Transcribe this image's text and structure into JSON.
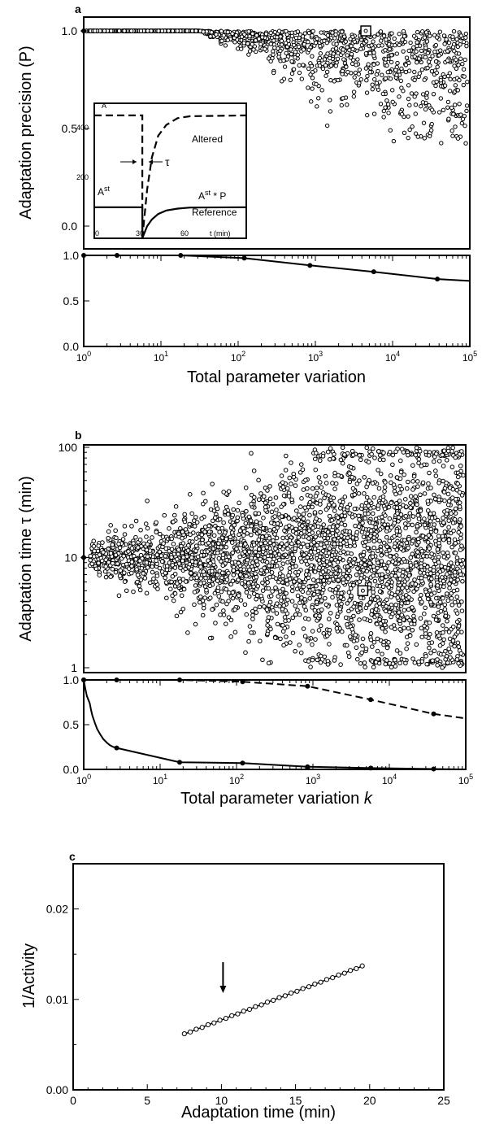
{
  "panels": {
    "a": {
      "letter": "a"
    },
    "b": {
      "letter": "b"
    },
    "c": {
      "letter": "c"
    }
  },
  "chart_data": [
    {
      "id": "a-top",
      "type": "scatter",
      "ylabel": "Adaptation precision (P)",
      "ylim": [
        0,
        1
      ],
      "yticks": [
        "0.0",
        "0.5",
        "1.0"
      ],
      "xscale": "log",
      "xlim": [
        1,
        100000
      ],
      "reference_point": {
        "x": 1,
        "y": 1.0
      },
      "highlight": {
        "x": 4500,
        "y": 1.0
      },
      "scatter_density": "points cluster at P=1.0 for small variation; spread down to ~0.45 for variation > 1000"
    },
    {
      "id": "a-inset",
      "type": "line",
      "ylabel": "A",
      "xlabel": "t (min)",
      "xticks": [
        "0",
        "30",
        "60"
      ],
      "yticks": [
        "200",
        "400"
      ],
      "xlim": [
        0,
        95
      ],
      "ylim": [
        0,
        500
      ],
      "series": [
        {
          "name": "Altered",
          "style": "dashed",
          "x": [
            0,
            30,
            30,
            33,
            36,
            40,
            45,
            52,
            60,
            95
          ],
          "y": [
            455,
            455,
            0,
            180,
            300,
            380,
            420,
            445,
            452,
            455
          ]
        },
        {
          "name": "Reference",
          "style": "solid",
          "x": [
            0,
            30,
            30,
            33,
            36,
            40,
            45,
            52,
            60,
            95
          ],
          "y": [
            115,
            115,
            0,
            45,
            70,
            90,
            103,
            110,
            114,
            115
          ]
        }
      ],
      "annotations": {
        "ast": "A",
        "ast_sup": "st",
        "astp": "A",
        "astp_sup": "st",
        "astp_tail": " * P",
        "tau": "τ"
      }
    },
    {
      "id": "a-bottom",
      "type": "line",
      "xlabel": "Total parameter variation",
      "xscale": "log",
      "xlim": [
        1,
        100000
      ],
      "ylim": [
        0,
        1
      ],
      "yticks": [
        "0.0",
        "0.5",
        "1.0"
      ],
      "xticks": [
        {
          "base": "10",
          "exp": "0"
        },
        {
          "base": "10",
          "exp": "1"
        },
        {
          "base": "10",
          "exp": "2"
        },
        {
          "base": "10",
          "exp": "3"
        },
        {
          "base": "10",
          "exp": "4"
        },
        {
          "base": "10",
          "exp": "5"
        }
      ],
      "series": [
        {
          "style": "solid",
          "x": [
            1,
            2.7,
            18,
            120,
            850,
            5700,
            38000,
            100000
          ],
          "y": [
            1.0,
            1.0,
            1.0,
            0.97,
            0.89,
            0.82,
            0.74,
            0.72
          ]
        }
      ]
    },
    {
      "id": "b-top",
      "type": "scatter",
      "ylabel": "Adaptation time τ (min)",
      "yscale": "log",
      "ylim": [
        1,
        100
      ],
      "yticks": [
        "1",
        "10",
        "100"
      ],
      "xscale": "log",
      "xlim": [
        1,
        100000
      ],
      "reference_point": {
        "x": 1,
        "y": 10
      },
      "highlight": {
        "x": 4500,
        "y": 5
      },
      "scatter_density": "dense cloud around τ=10 widening with variation; spans ~1 to 100 min"
    },
    {
      "id": "b-bottom",
      "type": "line",
      "xlabel": "Total parameter variation k",
      "xlabel_main": "Total parameter variation ",
      "xlabel_var": "k",
      "xscale": "log",
      "xlim": [
        1,
        100000
      ],
      "ylim": [
        0,
        1
      ],
      "yticks": [
        "0.0",
        "0.5",
        "1.0"
      ],
      "xticks": [
        {
          "base": "10",
          "exp": "0"
        },
        {
          "base": "10",
          "exp": "1"
        },
        {
          "base": "10",
          "exp": "2"
        },
        {
          "base": "10",
          "exp": "3"
        },
        {
          "base": "10",
          "exp": "4"
        },
        {
          "base": "10",
          "exp": "5"
        }
      ],
      "series": [
        {
          "style": "solid",
          "x": [
            1,
            1.05,
            1.1,
            1.2,
            1.25,
            1.3,
            1.4,
            1.5,
            1.65,
            1.8,
            2,
            2.2,
            2.45,
            2.7,
            18,
            120,
            850,
            5700,
            38000,
            100000
          ],
          "y": [
            1.0,
            0.9,
            0.82,
            0.74,
            0.66,
            0.6,
            0.52,
            0.45,
            0.39,
            0.34,
            0.3,
            0.27,
            0.25,
            0.24,
            0.08,
            0.07,
            0.03,
            0.015,
            0.005,
            0.0
          ]
        },
        {
          "style": "dashed",
          "x": [
            1,
            2.7,
            18,
            120,
            850,
            5700,
            38000,
            100000
          ],
          "y": [
            1.0,
            1.0,
            1.0,
            0.98,
            0.93,
            0.78,
            0.62,
            0.57
          ]
        }
      ]
    },
    {
      "id": "c",
      "type": "line",
      "xlabel": "Adaptation time (min)",
      "ylabel": "1/Activity",
      "xlim": [
        0,
        25
      ],
      "ylim": [
        0,
        0.025
      ],
      "xticks": [
        "0",
        "5",
        "10",
        "15",
        "20",
        "25"
      ],
      "yticks": [
        "0.00",
        "0.01",
        "0.02"
      ],
      "series": [
        {
          "style": "solid-with-markers",
          "x": [
            7.5,
            7.9,
            8.3,
            8.7,
            9.1,
            9.5,
            9.9,
            10.3,
            10.7,
            11.1,
            11.5,
            11.9,
            12.3,
            12.7,
            13.1,
            13.5,
            13.9,
            14.3,
            14.7,
            15.1,
            15.5,
            15.9,
            16.3,
            16.7,
            17.1,
            17.5,
            17.9,
            18.3,
            18.7,
            19.1,
            19.5
          ],
          "y": [
            0.0062,
            0.0064,
            0.0067,
            0.0069,
            0.0072,
            0.0074,
            0.0077,
            0.0079,
            0.0082,
            0.0084,
            0.0087,
            0.0089,
            0.0092,
            0.0094,
            0.0097,
            0.0099,
            0.0102,
            0.0104,
            0.0107,
            0.0109,
            0.0112,
            0.0114,
            0.0117,
            0.0119,
            0.0122,
            0.0124,
            0.0127,
            0.0129,
            0.0132,
            0.0134,
            0.0137
          ]
        }
      ],
      "arrow_at_x": 10
    }
  ]
}
